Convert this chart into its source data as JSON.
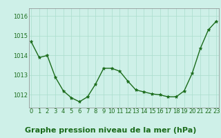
{
  "x": [
    0,
    1,
    2,
    3,
    4,
    5,
    6,
    7,
    8,
    9,
    10,
    11,
    12,
    13,
    14,
    15,
    16,
    17,
    18,
    19,
    20,
    21,
    22,
    23
  ],
  "y": [
    1014.7,
    1013.9,
    1014.0,
    1012.9,
    1012.2,
    1011.85,
    1011.65,
    1011.9,
    1012.55,
    1013.35,
    1013.35,
    1013.2,
    1012.7,
    1012.25,
    1012.15,
    1012.05,
    1012.0,
    1011.9,
    1011.9,
    1012.2,
    1013.1,
    1014.35,
    1015.3,
    1015.75
  ],
  "line_color": "#1a6b1a",
  "marker": "*",
  "marker_size": 3.5,
  "background_color": "#cef0e8",
  "grid_color": "#aaddcc",
  "xlabel": "Graphe pression niveau de la mer (hPa)",
  "xlabel_fontsize": 8,
  "ytick_values": [
    1012,
    1013,
    1014,
    1015,
    1016
  ],
  "ytick_labels": [
    "1012",
    "1013",
    "1014",
    "1015",
    "1016"
  ],
  "ylim": [
    1011.35,
    1016.4
  ],
  "xlim": [
    -0.3,
    23.3
  ],
  "xtick_labels": [
    "0",
    "1",
    "2",
    "3",
    "4",
    "5",
    "6",
    "7",
    "8",
    "9",
    "10",
    "11",
    "12",
    "13",
    "14",
    "15",
    "16",
    "17",
    "18",
    "19",
    "20",
    "21",
    "22",
    "23"
  ],
  "tick_fontsize": 6,
  "tick_color": "#1a6b1a",
  "axis_color": "#888888",
  "xlabel_color": "#1a6b1a",
  "xlabel_fontweight": "bold",
  "xlabel_bg": "#3cb371",
  "linewidth": 1.0
}
